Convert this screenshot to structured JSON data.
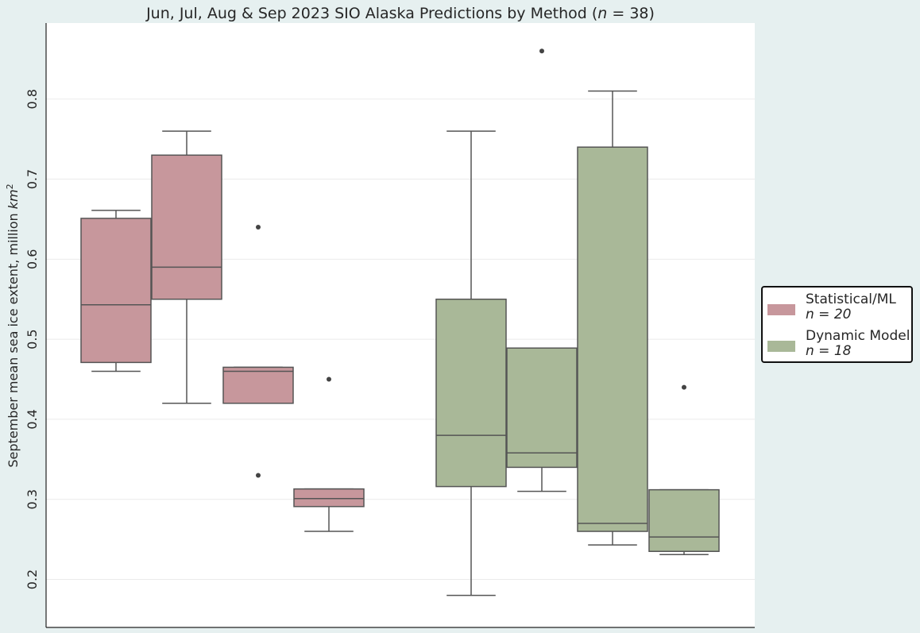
{
  "chart_data": {
    "type": "box",
    "title": "Jun, Jul, Aug & Sep 2023 SIO Alaska Predictions by Method (n = 38)",
    "title_parts": {
      "pre": "Jun, Jul, Aug & Sep 2023 SIO Alaska Predictions by Method (",
      "n_symbol": "n",
      "eq": " = 38)"
    },
    "ylabel": "September mean sea ice extent, million km²",
    "ylabel_parts": {
      "text": "September mean sea ice extent, million ",
      "unit": "km",
      "exp": "2"
    },
    "ylim": [
      0.14,
      0.895
    ],
    "yticks": [
      "0.2",
      "0.3",
      "0.4",
      "0.5",
      "0.6",
      "0.7",
      "0.8"
    ],
    "grid": "horizontal",
    "legend_position": "right",
    "series": [
      {
        "name": "Statistical/ML",
        "legend_n": "n = 20",
        "color": "#c7979c",
        "boxes": [
          {
            "whisker_low": 0.46,
            "q1": 0.471,
            "median": 0.543,
            "q3": 0.651,
            "whisker_high": 0.661,
            "outliers": []
          },
          {
            "whisker_low": 0.42,
            "q1": 0.55,
            "median": 0.59,
            "q3": 0.73,
            "whisker_high": 0.76,
            "outliers": []
          },
          {
            "whisker_low": 0.42,
            "q1": 0.42,
            "median": 0.46,
            "q3": 0.465,
            "whisker_high": 0.465,
            "outliers": [
              0.64,
              0.33
            ]
          },
          {
            "whisker_low": 0.26,
            "q1": 0.291,
            "median": 0.301,
            "q3": 0.313,
            "whisker_high": 0.313,
            "outliers": [
              0.45
            ]
          }
        ]
      },
      {
        "name": "Dynamic Model",
        "legend_n": "n = 18",
        "color": "#a9b898",
        "boxes": [
          {
            "whisker_low": 0.18,
            "q1": 0.316,
            "median": 0.38,
            "q3": 0.55,
            "whisker_high": 0.76,
            "outliers": []
          },
          {
            "whisker_low": 0.31,
            "q1": 0.34,
            "median": 0.358,
            "q3": 0.489,
            "whisker_high": 0.489,
            "outliers": [
              0.86
            ]
          },
          {
            "whisker_low": 0.243,
            "q1": 0.26,
            "median": 0.27,
            "q3": 0.74,
            "whisker_high": 0.81,
            "outliers": []
          },
          {
            "whisker_low": 0.231,
            "q1": 0.235,
            "median": 0.253,
            "q3": 0.312,
            "whisker_high": 0.312,
            "outliers": [
              0.44
            ]
          }
        ]
      }
    ]
  },
  "colors": {
    "background": "#e6f0f0",
    "plot_area": "#ffffff",
    "box_edge": "#555555",
    "grid": "#ebebeb"
  }
}
